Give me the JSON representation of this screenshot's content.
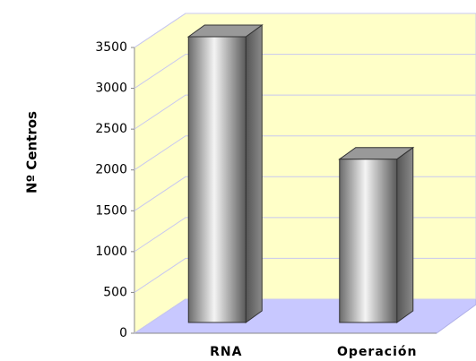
{
  "chart_data": {
    "type": "bar3d",
    "y_label": "Nº Centros",
    "categories": [
      "RNA",
      "Operación"
    ],
    "values": [
      3500,
      2000
    ],
    "ylim": [
      0,
      3500
    ],
    "yticks": [
      0,
      500,
      1000,
      1500,
      2000,
      2500,
      3000,
      3500
    ],
    "grid": true
  }
}
